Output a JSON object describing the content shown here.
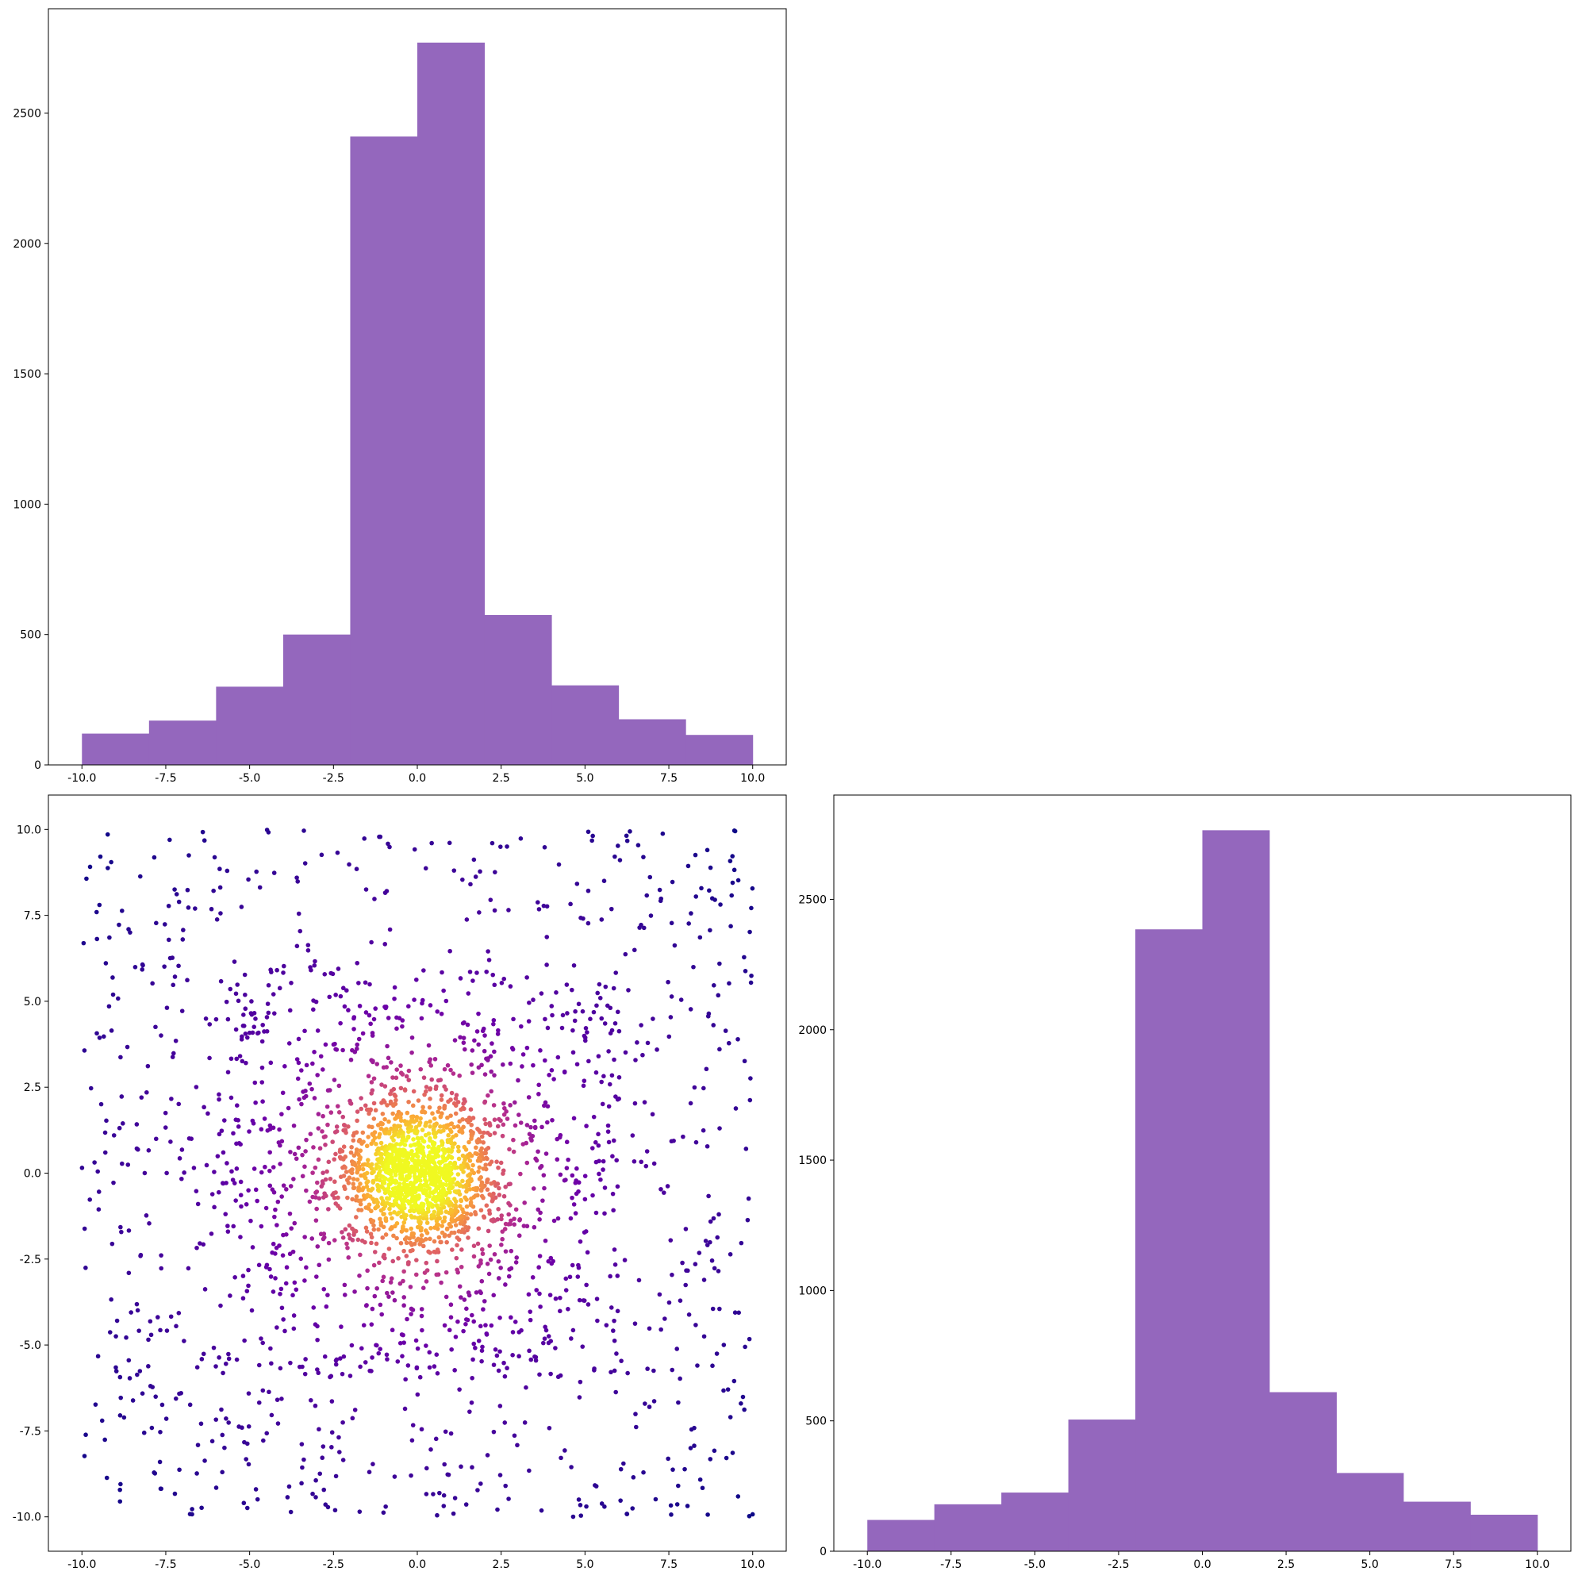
{
  "chart_data": [
    {
      "type": "bar",
      "panel": "top-left",
      "bin_edges": [
        -10,
        -8,
        -6,
        -4,
        -2,
        0,
        2,
        4,
        6,
        8,
        10
      ],
      "values": [
        120,
        170,
        300,
        500,
        2410,
        2770,
        575,
        305,
        175,
        115
      ],
      "color": "#9467bd",
      "xlim": [
        -11,
        11
      ],
      "ylim": [
        0,
        2900
      ],
      "x_ticks": [
        "-10.0",
        "-7.5",
        "-5.0",
        "-2.5",
        "0.0",
        "2.5",
        "5.0",
        "7.5",
        "10.0"
      ],
      "y_ticks": [
        "0",
        "500",
        "1000",
        "1500",
        "2000",
        "2500"
      ],
      "title": "",
      "xlabel": "",
      "ylabel": ""
    },
    {
      "type": "scatter",
      "panel": "bottom-left",
      "xlim": [
        -11,
        11
      ],
      "ylim": [
        -11,
        11
      ],
      "x_ticks": [
        "-10.0",
        "-7.5",
        "-5.0",
        "-2.5",
        "0.0",
        "2.5",
        "5.0",
        "7.5",
        "10.0"
      ],
      "y_ticks": [
        "-10.0",
        "-7.5",
        "-5.0",
        "-2.5",
        "0.0",
        "2.5",
        "5.0",
        "7.5",
        "10.0"
      ],
      "colormap": [
        "#0d0887",
        "#6a00a8",
        "#b12a90",
        "#e16462",
        "#fca636",
        "#f0f921"
      ],
      "point_count": 3000,
      "title": "",
      "xlabel": "",
      "ylabel": ""
    },
    {
      "type": "bar",
      "panel": "bottom-right",
      "bin_edges": [
        -10,
        -8,
        -6,
        -4,
        -2,
        0,
        2,
        4,
        6,
        8,
        10
      ],
      "values": [
        120,
        180,
        225,
        505,
        2385,
        2765,
        610,
        300,
        190,
        140
      ],
      "color": "#9467bd",
      "xlim": [
        -11,
        11
      ],
      "ylim": [
        0,
        2900
      ],
      "x_ticks": [
        "-10.0",
        "-7.5",
        "-5.0",
        "-2.5",
        "0.0",
        "2.5",
        "5.0",
        "7.5",
        "10.0"
      ],
      "y_ticks": [
        "0",
        "500",
        "1000",
        "1500",
        "2000",
        "2500"
      ],
      "title": "",
      "xlabel": "",
      "ylabel": ""
    }
  ]
}
